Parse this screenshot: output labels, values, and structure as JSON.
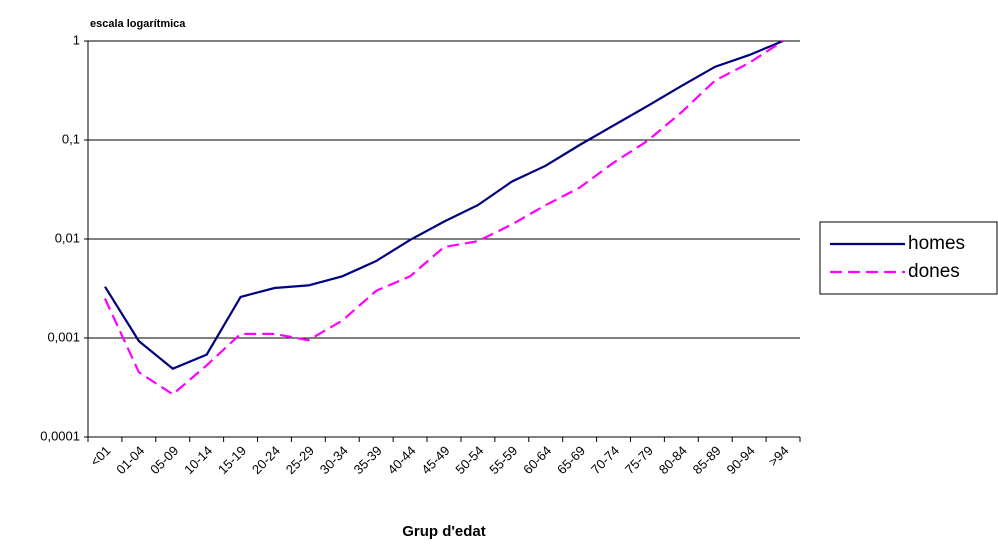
{
  "chart_data": {
    "type": "line",
    "annotation": "escala logarítmica",
    "xlabel": "Grup d'edat",
    "log_scale": true,
    "grid": true,
    "categories": [
      "<01",
      "01-04",
      "05-09",
      "10-14",
      "15-19",
      "20-24",
      "25-29",
      "30-34",
      "35-39",
      "40-44",
      "45-49",
      "50-54",
      "55-59",
      "60-64",
      "65-69",
      "70-74",
      "75-79",
      "80-84",
      "85-89",
      "90-94",
      ">94"
    ],
    "series": [
      {
        "name": "homes",
        "color": "#000080",
        "dash": "solid",
        "values": [
          0.0033,
          0.00093,
          0.00049,
          0.00068,
          0.0026,
          0.0032,
          0.0034,
          0.0042,
          0.006,
          0.0098,
          0.015,
          0.022,
          0.038,
          0.055,
          0.089,
          0.14,
          0.22,
          0.35,
          0.55,
          0.72,
          1
        ]
      },
      {
        "name": "dones",
        "color": "#ff00ff",
        "dash": "dashed",
        "values": [
          0.0025,
          0.00045,
          0.00027,
          0.00053,
          0.0011,
          0.0011,
          0.00095,
          0.0015,
          0.003,
          0.0042,
          0.0083,
          0.0095,
          0.014,
          0.022,
          0.033,
          0.059,
          0.098,
          0.19,
          0.4,
          0.6,
          1
        ]
      }
    ],
    "ylim": [
      0.0001,
      1
    ],
    "yticks": [
      {
        "value": 0.0001,
        "label": "0,0001"
      },
      {
        "value": 0.001,
        "label": "0,001"
      },
      {
        "value": 0.01,
        "label": "0,01"
      },
      {
        "value": 0.1,
        "label": "0,1"
      },
      1
    ],
    "legend": "right"
  }
}
